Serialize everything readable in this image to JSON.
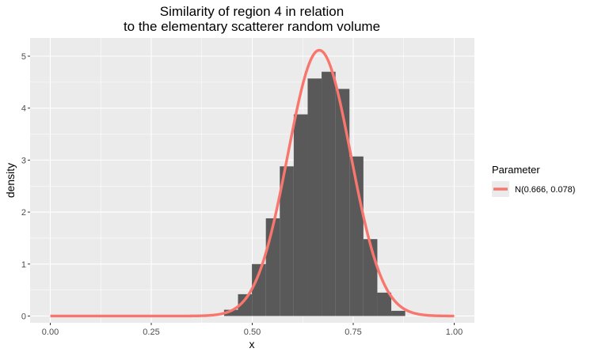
{
  "chart_data": {
    "type": "histogram",
    "title_line1": "Similarity of region 4 in relation",
    "title_line2": "to the elementary scatterer random volume",
    "xlabel": "x",
    "ylabel": "density",
    "xlim": [
      -0.05,
      1.05
    ],
    "ylim": [
      -0.13,
      5.35
    ],
    "x_ticks": [
      {
        "value": 0.0,
        "label": "0.00"
      },
      {
        "value": 0.25,
        "label": "0.25"
      },
      {
        "value": 0.5,
        "label": "0.50"
      },
      {
        "value": 0.75,
        "label": "0.75"
      },
      {
        "value": 1.0,
        "label": "1.00"
      }
    ],
    "y_ticks": [
      {
        "value": 0,
        "label": "0"
      },
      {
        "value": 1,
        "label": "1"
      },
      {
        "value": 2,
        "label": "2"
      },
      {
        "value": 3,
        "label": "3"
      },
      {
        "value": 4,
        "label": "4"
      },
      {
        "value": 5,
        "label": "5"
      }
    ],
    "bin_width": 0.0345,
    "bins": [
      {
        "x0": 0.4302,
        "height": 0.12
      },
      {
        "x0": 0.4647,
        "height": 0.42
      },
      {
        "x0": 0.4992,
        "height": 1.0
      },
      {
        "x0": 0.5337,
        "height": 1.88
      },
      {
        "x0": 0.5682,
        "height": 2.88
      },
      {
        "x0": 0.6027,
        "height": 3.88
      },
      {
        "x0": 0.6372,
        "height": 4.57
      },
      {
        "x0": 0.6717,
        "height": 4.7
      },
      {
        "x0": 0.7062,
        "height": 4.37
      },
      {
        "x0": 0.7407,
        "height": 3.07
      },
      {
        "x0": 0.7752,
        "height": 1.48
      },
      {
        "x0": 0.8097,
        "height": 0.45
      },
      {
        "x0": 0.8442,
        "height": 0.1
      }
    ],
    "curve": {
      "name": "N(0.666, 0.078)",
      "mean": 0.666,
      "sd": 0.078,
      "x_range": [
        0.0,
        1.0
      ],
      "color": "#F8766D"
    },
    "bar_color": "#595959",
    "panel_color": "#EBEBEB",
    "grid_color": "#FFFFFF",
    "grid": true,
    "legend": {
      "title": "Parameter",
      "position": "right",
      "items": [
        {
          "label": "N(0.666, 0.078)",
          "color": "#F8766D"
        }
      ]
    }
  }
}
